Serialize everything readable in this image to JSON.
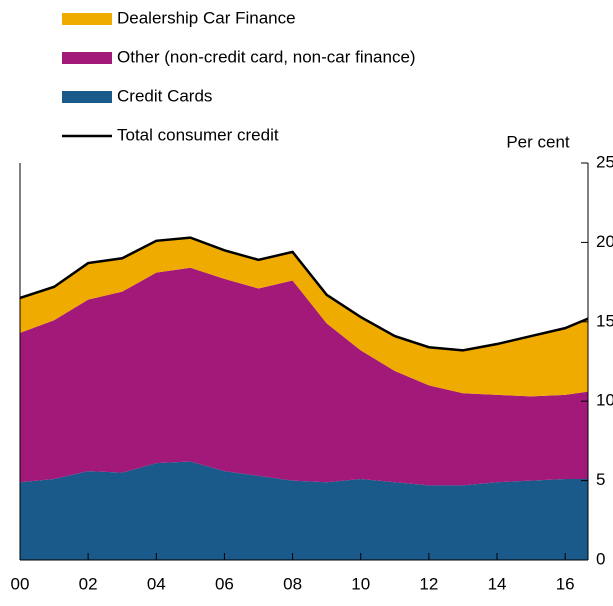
{
  "chart_data": {
    "type": "stacked_area",
    "y_label": "Per cent",
    "x": [
      2000,
      2001,
      2002,
      2003,
      2004,
      2005,
      2006,
      2007,
      2008,
      2009,
      2010,
      2011,
      2012,
      2013,
      2014,
      2015,
      2016,
      2016.67
    ],
    "xlim": [
      2000,
      2016.67
    ],
    "xticks": [
      {
        "value": 2000,
        "label": "00"
      },
      {
        "value": 2002,
        "label": "02"
      },
      {
        "value": 2004,
        "label": "04"
      },
      {
        "value": 2006,
        "label": "06"
      },
      {
        "value": 2008,
        "label": "08"
      },
      {
        "value": 2010,
        "label": "10"
      },
      {
        "value": 2012,
        "label": "12"
      },
      {
        "value": 2014,
        "label": "14"
      },
      {
        "value": 2016,
        "label": "16"
      }
    ],
    "ylim": [
      0,
      25
    ],
    "yticks": [
      0,
      5,
      10,
      15,
      20,
      25
    ],
    "series": [
      {
        "name": "Dealership Car Finance",
        "color": "#f0ab00",
        "values": [
          2.2,
          2.1,
          2.3,
          2.1,
          2.0,
          1.9,
          1.8,
          1.8,
          1.8,
          1.8,
          2.1,
          2.2,
          2.4,
          2.7,
          3.2,
          3.8,
          4.2,
          4.6
        ]
      },
      {
        "name": "Other (non-credit card, non-car finance)",
        "color": "#a3197a",
        "values": [
          9.4,
          10.0,
          10.8,
          11.4,
          12.0,
          12.2,
          12.1,
          11.8,
          12.6,
          10.0,
          8.1,
          7.0,
          6.3,
          5.8,
          5.5,
          5.3,
          5.3,
          5.5
        ]
      },
      {
        "name": "Credit Cards",
        "color": "#1a5a8a",
        "values": [
          4.9,
          5.1,
          5.6,
          5.5,
          6.1,
          6.2,
          5.6,
          5.3,
          5.0,
          4.9,
          5.1,
          4.9,
          4.7,
          4.7,
          4.9,
          5.0,
          5.1,
          5.1
        ]
      },
      {
        "name": "Total consumer credit",
        "color": "#000000",
        "type": "line",
        "values": [
          16.5,
          17.2,
          18.7,
          19.0,
          20.1,
          20.3,
          19.5,
          18.9,
          19.4,
          16.7,
          15.3,
          14.1,
          13.4,
          13.2,
          13.6,
          14.1,
          14.6,
          15.2
        ]
      }
    ]
  }
}
